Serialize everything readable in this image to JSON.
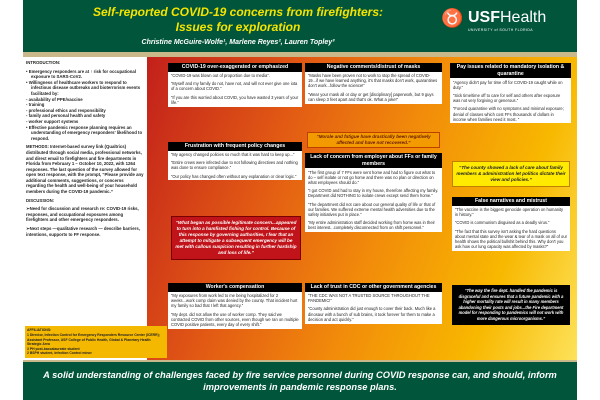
{
  "header": {
    "title_line1": "Self-reported COVID-19 concerns from firefighters:",
    "title_line2": "Issues for exploration",
    "authors": "Christine McGuire-Wolfe¹, Marlene Reyes², Lauren Topley³",
    "logo_brand": "USF",
    "logo_brand2": "Health",
    "logo_sub": "UNIVERSITY of SOUTH FLORIDA"
  },
  "colors": {
    "green": "#00553a",
    "title_yellow": "#f5e400",
    "gold": "#f5b800",
    "red": "#c2201b"
  },
  "intro": {
    "heading": "INTRODUCTION:",
    "items": [
      "Emergency responders are at ↑ risk for occupational exposure to SARS-CoV2.",
      "Willingness of healthcare workers to respond to infectious disease outbreaks and bioterrorism events facilitated by:",
      "Effective pandemic response planning requires an understanding of emergency responders' likelihood to respond."
    ],
    "subitems": [
      "- availability of PPE/vaccine",
      "- training",
      "- professional ethics and responsibility",
      "- family and personal health and safety",
      "- worker support systems"
    ]
  },
  "methods": "METHODS: Internet-based survey link (Qualtrics) distributed through social media, professional networks, and direct email to firefighters and fire departments in Florida from February 1 – October 10, 2022, with 1264 responses. The last question of the survey allowed for open text response, with the prompt, “Please provide any additional comments, suggestions, or concerns regarding the health and well-being of your household members during the COVID-19 pandemic.”",
  "discussion": {
    "heading": "DISCUSSION:",
    "items": [
      "➢Need for discussion and research re: COVID-19 risks, responses, and occupational exposures among firefighters and other emergency responders.",
      "➢Next steps —qualitative research — describe barriers, intentions, supports to FF response."
    ]
  },
  "affiliations": {
    "heading": "AFFILIATIONS:",
    "lines": [
      "1 Director, Infection Control for Emergency Responders Resource Center (ICERR); Assistant Professor, USF College of Public Health, Global & Planetary Health Strategic Area",
      "3 PH post-baccalaureate student",
      "2 BSPH student, Infection Control minor"
    ]
  },
  "boxes": [
    {
      "title": "COVID-19 over-exaggerated or emphasized",
      "quotes": [
        "“COVID-19 was blown out of proportion due to media”.",
        "“Myself and my family do not, have not, and will not ever give one iota of a concern about COVID.”",
        "“If you are this worried about COVID, you have wasted 3 years of your life.”"
      ]
    },
    {
      "title": "Frustration with frequent policy changes",
      "quotes": [
        "“My agency changed policies so much that it was hard to keep up...”",
        "“Entire crews were infected due to not following directives and nothing was done to ensure compliance.”",
        "“Our policy has changed often without any explanation or clear logic.”"
      ]
    },
    {
      "title": "Worker's compensation",
      "quotes": [
        "“My exposures from work led to me being hospitalized for 2 weeks...work comp claim was denied by the county. That incident hurt my family so bad that I left that agency.”",
        "“My dept. did not allow the use of worker comp. They said we contracted COVID from other sources, even though we ran on multiple COVID positive patients, every day of every shift.”"
      ]
    },
    {
      "title": "Negative comments/distrust of masks",
      "quotes": [
        "“Masks have been proven not to work to stop the spread of COVID-19...if we have learned anything, it's that masks don't work, quarantines don't work...follow the science!”",
        "“Wear your mask all or day or get [disciplinary] paperwork, but 9 guys can sleep 3 feet apart and that's ok. What a joke!”"
      ]
    },
    {
      "title": "Lack of concern from employer about FFs or family members",
      "quotes": [
        "“The first group of 7 FFs were sent home and had to figure out what to do – self isolate or not go home and there was no plan or direction on what employees should do.”",
        "“I got COVID and had to stay in my house, therefore affecting my family. Department did NOTHING to isolate crews except send them home.”",
        "“The department did not care about our general quality of life or that of our families.  We suffered extreme mental health adversities due to the safety initiatives put in place.”",
        "“My entire administration staff decided working from home was in their best interest...completely disconnected from on shift personnel.”"
      ]
    },
    {
      "title": "Lack of trust in CDC or other government agencies",
      "quotes": [
        "“THE CDC WAS NOT A TRUSTED SOURCE THROUGHOUT THE PANDEMIC!”",
        "“County administration did just enough to cover their back.  Much like a dinosaur with a bunch of sub brains, it took forever for them to make a decision and act quickly.”"
      ]
    },
    {
      "title": "Pay issues related to mandatory isolation & quarantine",
      "quotes": [
        "“Agency didn't pay for time off for COVID-19 caught while on duty.”",
        "“Sick time/time off to care for self and others after exposure was not very forgiving or generous.”",
        "“Forced quarantine with no symptoms and minimal exposure; denial of classes which cost FFs thousands of dollars in income when families need it most. ”"
      ]
    },
    {
      "title": "False narratives and mistrust",
      "quotes": [
        "“The vaccine is the biggest genocide operation on humanity in history.”",
        "“COVID is communism disguised as a deadly virus.”",
        "“The fact that this survey isn't asking the hard questions about mental state and the wear & tear of a mask on all of our health shows the political bullshit behind this. Why don't you ask how our lung capacity was affected by masks?”"
      ]
    }
  ],
  "callouts": [
    "“What began as possible legitimate concern...appeared to turn into a hamfisted fishing for control. Because of this response by governing authorities, I fear that an attempt to mitigate a subsequent emergency will be met with callous suspicion resulting in further hardship and loss of life.”",
    "“Morale and fatigue have drastically been negatively affected and have not recovered.”",
    "“The county showed a lack of care about family members & administration let politics dictate their view and policies.”",
    "“The way the fire dept. handled the pandemic is disgraceful and ensures that a future pandemic with a higher mortality rate will result in many members abandoning their posts and jobs...the Fire department model for responding to pandemics will not work with more dangerous microorganisms.”"
  ],
  "conclusion": "A solid understanding of challenges faced by fire service personnel during COVID response can, and should, inform improvements in pandemic response plans."
}
